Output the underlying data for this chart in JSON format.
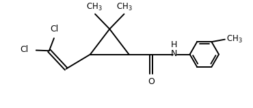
{
  "background_color": "#ffffff",
  "line_color": "#000000",
  "line_width": 1.4,
  "font_size": 9,
  "figsize": [
    3.7,
    1.58
  ],
  "dpi": 100,
  "xlim": [
    0,
    10
  ],
  "ylim": [
    0,
    4.3
  ]
}
